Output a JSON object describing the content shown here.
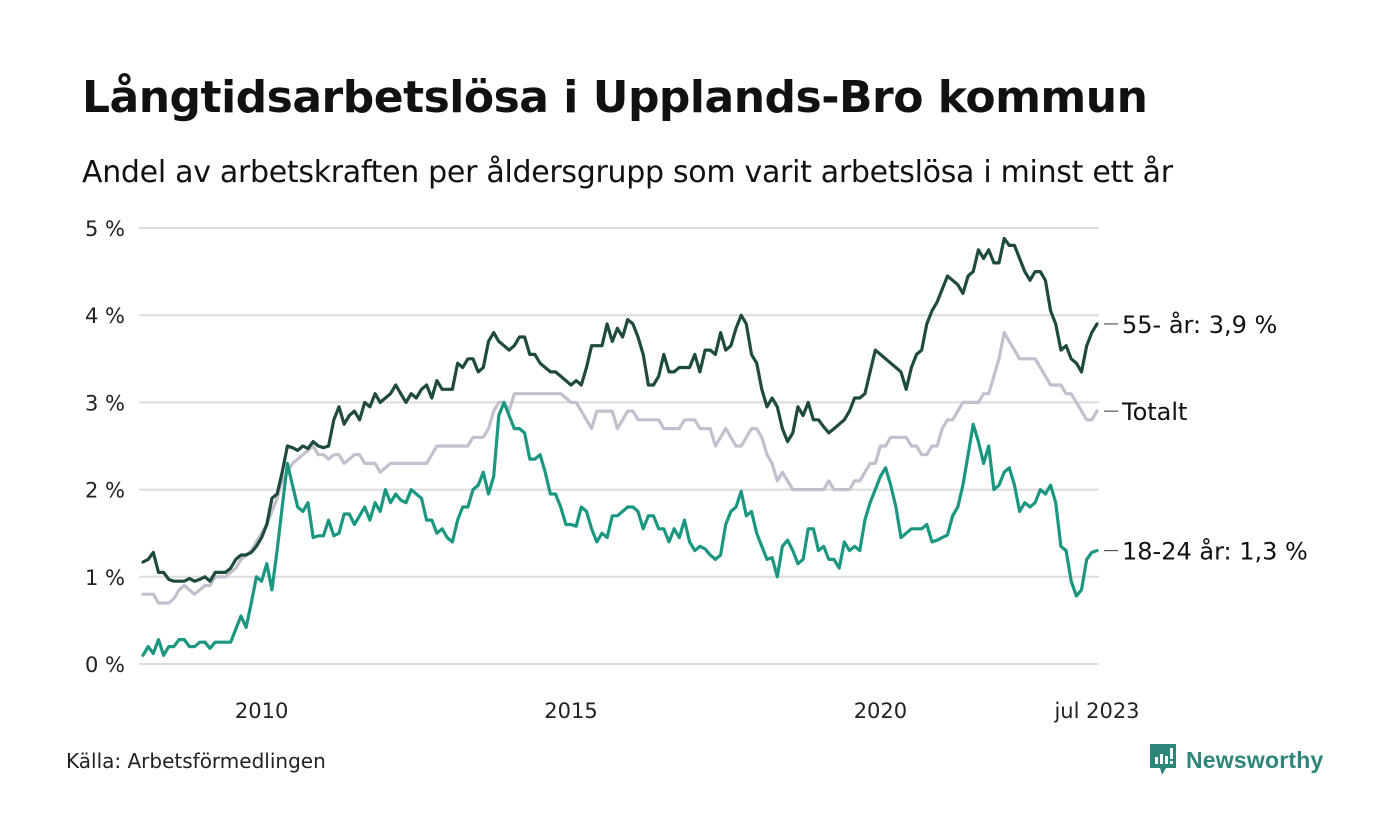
{
  "title": "Långtidsarbetslösa i Upplands-Bro kommun",
  "subtitle": "Andel av arbetskraften per åldersgrupp som varit arbetslösa i minst ett år",
  "source": "Källa: Arbetsförmedlingen",
  "brand": {
    "name": "Newsworthy",
    "icon": "newsworthy-logo-icon",
    "color": "#2e8579"
  },
  "chart_data": {
    "type": "line",
    "title": "Långtidsarbetslösa i Upplands-Bro kommun",
    "subtitle": "Andel av arbetskraften per åldersgrupp som varit arbetslösa i minst ett år",
    "xlabel": "",
    "ylabel": "",
    "x_start": "2008-02",
    "x_end": "2023-07",
    "x_frequency": "monthly",
    "x_ticks": [
      {
        "label": "2010",
        "month": "2010-01"
      },
      {
        "label": "2015",
        "month": "2015-01"
      },
      {
        "label": "2020",
        "month": "2020-01"
      },
      {
        "label": "jul 2023",
        "month": "2023-07"
      }
    ],
    "y_ticks": [
      {
        "value": 0,
        "label": "0 %"
      },
      {
        "value": 1,
        "label": "1 %"
      },
      {
        "value": 2,
        "label": "2 %"
      },
      {
        "value": 3,
        "label": "3 %"
      },
      {
        "value": 4,
        "label": "4 %"
      },
      {
        "value": 5,
        "label": "5 %"
      }
    ],
    "ylim": [
      0,
      5
    ],
    "grid": "horizontal",
    "legend": "end-of-line labels, right",
    "series": [
      {
        "name": "Totalt",
        "end_label": "Totalt",
        "color": "#c1c0cc",
        "values": [
          0.8,
          0.8,
          0.8,
          0.7,
          0.7,
          0.7,
          0.75,
          0.85,
          0.9,
          0.85,
          0.8,
          0.85,
          0.9,
          0.9,
          1.0,
          1.0,
          1.0,
          1.05,
          1.1,
          1.2,
          1.25,
          1.3,
          1.4,
          1.5,
          1.6,
          1.75,
          1.9,
          2.1,
          2.2,
          2.3,
          2.35,
          2.4,
          2.45,
          2.5,
          2.4,
          2.4,
          2.35,
          2.4,
          2.4,
          2.3,
          2.35,
          2.4,
          2.4,
          2.3,
          2.3,
          2.3,
          2.2,
          2.25,
          2.3,
          2.3,
          2.3,
          2.3,
          2.3,
          2.3,
          2.3,
          2.3,
          2.4,
          2.5,
          2.5,
          2.5,
          2.5,
          2.5,
          2.5,
          2.5,
          2.6,
          2.6,
          2.6,
          2.7,
          2.9,
          3.0,
          3.0,
          2.9,
          3.1,
          3.1,
          3.1,
          3.1,
          3.1,
          3.1,
          3.1,
          3.1,
          3.1,
          3.1,
          3.05,
          3.0,
          3.0,
          2.9,
          2.8,
          2.7,
          2.9,
          2.9,
          2.9,
          2.9,
          2.7,
          2.8,
          2.9,
          2.9,
          2.8,
          2.8,
          2.8,
          2.8,
          2.8,
          2.7,
          2.7,
          2.7,
          2.7,
          2.8,
          2.8,
          2.8,
          2.7,
          2.7,
          2.7,
          2.5,
          2.6,
          2.7,
          2.6,
          2.5,
          2.5,
          2.6,
          2.7,
          2.7,
          2.6,
          2.4,
          2.3,
          2.1,
          2.2,
          2.1,
          2.0,
          2.0,
          2.0,
          2.0,
          2.0,
          2.0,
          2.0,
          2.1,
          2.0,
          2.0,
          2.0,
          2.0,
          2.1,
          2.1,
          2.2,
          2.3,
          2.3,
          2.5,
          2.5,
          2.6,
          2.6,
          2.6,
          2.6,
          2.5,
          2.5,
          2.4,
          2.4,
          2.5,
          2.5,
          2.7,
          2.8,
          2.8,
          2.9,
          3.0,
          3.0,
          3.0,
          3.0,
          3.1,
          3.1,
          3.3,
          3.5,
          3.8,
          3.7,
          3.6,
          3.5,
          3.5,
          3.5,
          3.5,
          3.4,
          3.3,
          3.2,
          3.2,
          3.2,
          3.1,
          3.1,
          3.0,
          2.9,
          2.8,
          2.8,
          2.9
        ]
      },
      {
        "name": "55- år",
        "end_label": "55- år: 3,9 %",
        "color": "#1f4a3f",
        "values": [
          1.17,
          1.2,
          1.28,
          1.05,
          1.05,
          0.97,
          0.95,
          0.95,
          0.95,
          0.98,
          0.95,
          0.97,
          1.0,
          0.95,
          1.05,
          1.05,
          1.05,
          1.1,
          1.2,
          1.25,
          1.25,
          1.28,
          1.35,
          1.45,
          1.6,
          1.9,
          1.95,
          2.2,
          2.5,
          2.48,
          2.45,
          2.5,
          2.47,
          2.55,
          2.5,
          2.48,
          2.5,
          2.8,
          2.95,
          2.75,
          2.85,
          2.9,
          2.8,
          3.0,
          2.95,
          3.1,
          3.0,
          3.05,
          3.1,
          3.2,
          3.1,
          3.0,
          3.1,
          3.05,
          3.15,
          3.2,
          3.05,
          3.25,
          3.15,
          3.15,
          3.15,
          3.45,
          3.4,
          3.5,
          3.5,
          3.35,
          3.4,
          3.7,
          3.8,
          3.7,
          3.65,
          3.6,
          3.65,
          3.75,
          3.75,
          3.55,
          3.55,
          3.45,
          3.4,
          3.35,
          3.35,
          3.3,
          3.25,
          3.2,
          3.25,
          3.2,
          3.4,
          3.65,
          3.65,
          3.65,
          3.9,
          3.7,
          3.85,
          3.75,
          3.95,
          3.9,
          3.75,
          3.55,
          3.2,
          3.2,
          3.3,
          3.55,
          3.35,
          3.35,
          3.4,
          3.4,
          3.4,
          3.55,
          3.35,
          3.6,
          3.6,
          3.55,
          3.8,
          3.6,
          3.65,
          3.85,
          4.0,
          3.9,
          3.55,
          3.45,
          3.15,
          2.95,
          3.05,
          2.95,
          2.7,
          2.55,
          2.65,
          2.95,
          2.85,
          3.0,
          2.8,
          2.8,
          2.72,
          2.65,
          2.7,
          2.75,
          2.8,
          2.9,
          3.05,
          3.05,
          3.1,
          3.35,
          3.6,
          3.55,
          3.5,
          3.45,
          3.4,
          3.35,
          3.15,
          3.4,
          3.55,
          3.6,
          3.9,
          4.05,
          4.15,
          4.3,
          4.45,
          4.4,
          4.35,
          4.25,
          4.45,
          4.5,
          4.75,
          4.65,
          4.75,
          4.6,
          4.6,
          4.88,
          4.8,
          4.8,
          4.65,
          4.5,
          4.4,
          4.5,
          4.5,
          4.4,
          4.05,
          3.9,
          3.6,
          3.65,
          3.5,
          3.45,
          3.35,
          3.65,
          3.8,
          3.9
        ]
      },
      {
        "name": "18-24 år",
        "end_label": "18-24 år: 1,3 %",
        "color": "#1b9781",
        "values": [
          0.1,
          0.2,
          0.12,
          0.28,
          0.1,
          0.2,
          0.2,
          0.28,
          0.28,
          0.2,
          0.2,
          0.25,
          0.25,
          0.18,
          0.25,
          0.25,
          0.25,
          0.25,
          0.4,
          0.55,
          0.42,
          0.7,
          1.0,
          0.95,
          1.15,
          0.85,
          1.3,
          1.8,
          2.3,
          2.05,
          1.8,
          1.75,
          1.85,
          1.45,
          1.47,
          1.47,
          1.65,
          1.47,
          1.5,
          1.72,
          1.72,
          1.6,
          1.7,
          1.8,
          1.65,
          1.85,
          1.75,
          2.0,
          1.85,
          1.95,
          1.88,
          1.85,
          2.0,
          1.95,
          1.9,
          1.65,
          1.65,
          1.5,
          1.55,
          1.45,
          1.4,
          1.65,
          1.8,
          1.8,
          2.0,
          2.05,
          2.2,
          1.95,
          2.15,
          2.85,
          3.0,
          2.85,
          2.7,
          2.7,
          2.65,
          2.35,
          2.35,
          2.4,
          2.2,
          1.95,
          1.95,
          1.8,
          1.6,
          1.6,
          1.58,
          1.8,
          1.75,
          1.55,
          1.4,
          1.5,
          1.45,
          1.7,
          1.7,
          1.75,
          1.8,
          1.8,
          1.75,
          1.55,
          1.7,
          1.7,
          1.55,
          1.55,
          1.4,
          1.55,
          1.45,
          1.65,
          1.4,
          1.3,
          1.35,
          1.32,
          1.25,
          1.2,
          1.25,
          1.6,
          1.75,
          1.8,
          1.98,
          1.7,
          1.75,
          1.5,
          1.35,
          1.2,
          1.22,
          1.0,
          1.35,
          1.42,
          1.3,
          1.15,
          1.2,
          1.55,
          1.55,
          1.3,
          1.35,
          1.2,
          1.2,
          1.1,
          1.4,
          1.3,
          1.35,
          1.3,
          1.65,
          1.85,
          2.0,
          2.15,
          2.25,
          2.05,
          1.8,
          1.45,
          1.5,
          1.55,
          1.55,
          1.55,
          1.6,
          1.4,
          1.42,
          1.45,
          1.48,
          1.7,
          1.8,
          2.05,
          2.4,
          2.75,
          2.55,
          2.3,
          2.5,
          2.0,
          2.05,
          2.2,
          2.25,
          2.05,
          1.75,
          1.85,
          1.8,
          1.85,
          2.0,
          1.95,
          2.05,
          1.85,
          1.35,
          1.3,
          0.95,
          0.78,
          0.85,
          1.2,
          1.28,
          1.3
        ]
      }
    ]
  }
}
